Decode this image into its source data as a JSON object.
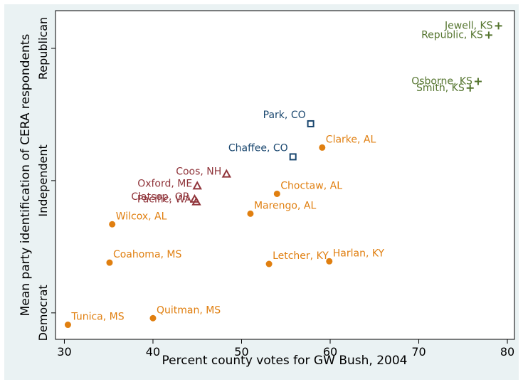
{
  "chart_data": {
    "type": "scatter",
    "x_label": "Percent county votes for GW Bush, 2004",
    "y_label": "Mean party identification of CERA respondents",
    "xlim": [
      29,
      80.8
    ],
    "ylim": [
      0.8,
      3.285
    ],
    "xticks": [
      30,
      40,
      50,
      60,
      70,
      80
    ],
    "yticks": [
      {
        "value": 1,
        "label": "Democrat"
      },
      {
        "value": 2,
        "label": "Independent"
      },
      {
        "value": 3,
        "label": "Republican"
      }
    ],
    "series": [
      {
        "color": "#e07f10",
        "marker": "circle",
        "labels": [
          "Tunica, MS",
          "Quitman, MS",
          "Coahoma, MS",
          "Wilcox, AL",
          "Letcher, KY",
          "Harlan, KY",
          "Marengo, AL",
          "Choctaw, AL",
          "Clarke, AL"
        ],
        "x": [
          30.4,
          40.0,
          35.1,
          35.4,
          53.1,
          59.9,
          51.0,
          54.0,
          59.1
        ],
        "values": [
          0.91,
          0.96,
          1.38,
          1.67,
          1.37,
          1.39,
          1.75,
          1.9,
          2.25
        ]
      },
      {
        "color": "#1a476f",
        "marker": "square",
        "labels": [
          "Park, CO",
          "Chaffee, CO"
        ],
        "x": [
          57.8,
          55.8
        ],
        "values": [
          2.43,
          2.18
        ]
      },
      {
        "color": "#90353b",
        "marker": "triangle",
        "labels": [
          "Coos, NH",
          "Oxford, ME",
          "Clatsop, OR",
          "Pacific, WA"
        ],
        "x": [
          48.3,
          45.0,
          44.7,
          44.9
        ],
        "values": [
          2.05,
          1.96,
          1.86,
          1.84
        ]
      },
      {
        "color": "#55752f",
        "marker": "plus",
        "labels": [
          "Jewell, KS",
          "Republic, KS",
          "Osborne, KS",
          "Smith, KS"
        ],
        "x": [
          79.0,
          77.9,
          76.7,
          75.8
        ],
        "values": [
          3.17,
          3.1,
          2.75,
          2.7
        ]
      }
    ]
  }
}
